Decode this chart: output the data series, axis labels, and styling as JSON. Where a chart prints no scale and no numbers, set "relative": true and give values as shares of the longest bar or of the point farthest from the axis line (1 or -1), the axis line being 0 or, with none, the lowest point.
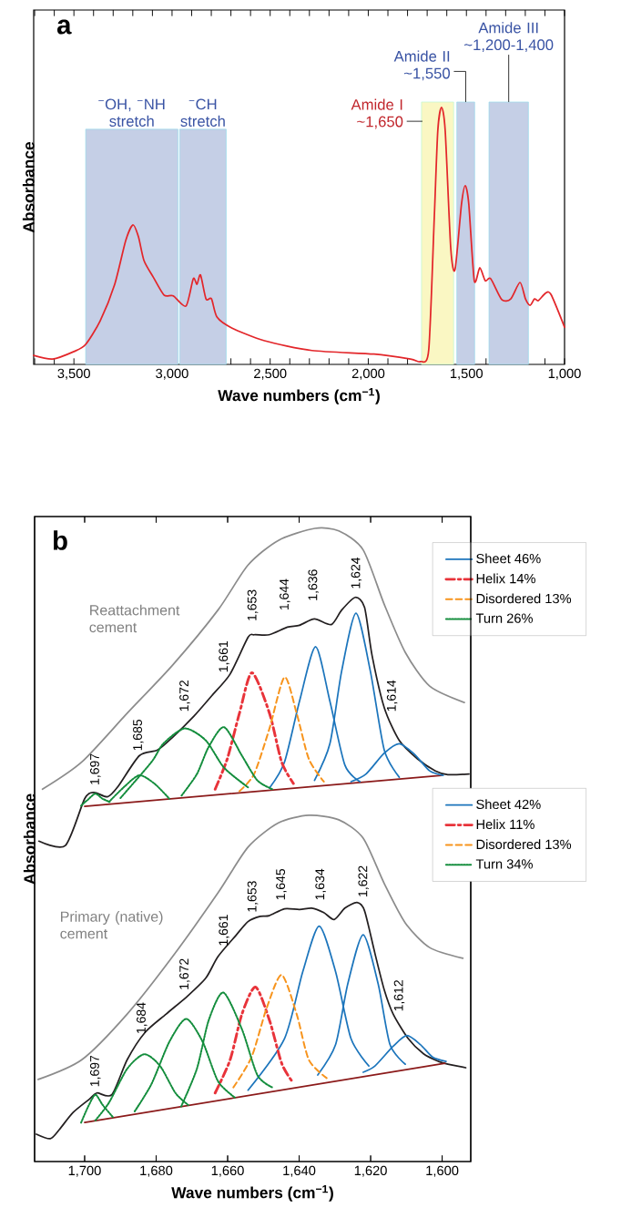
{
  "chart_data": [
    {
      "type": "line",
      "relative": true,
      "xlabel": "Wave numbers (cm$^{−1}$)",
      "ylabel": "Absorbance",
      "color": "#e3262a",
      "xlim": [
        3705,
        1000
      ],
      "xticks": [
        {
          "value": 3700,
          "label": null
        },
        {
          "value": 3600,
          "label": null
        },
        {
          "value": 3500,
          "label": "3,500"
        },
        {
          "value": 3400,
          "label": null
        },
        {
          "value": 3300,
          "label": null
        },
        {
          "value": 3200,
          "label": null
        },
        {
          "value": 3100,
          "label": null
        },
        {
          "value": 3000,
          "label": "3,000"
        },
        {
          "value": 2900,
          "label": null
        },
        {
          "value": 2800,
          "label": null
        },
        {
          "value": 2700,
          "label": null
        },
        {
          "value": 2600,
          "label": null
        },
        {
          "value": 2500,
          "label": "2,500"
        },
        {
          "value": 2400,
          "label": null
        },
        {
          "value": 2300,
          "label": null
        },
        {
          "value": 2200,
          "label": null
        },
        {
          "value": 2100,
          "label": null
        },
        {
          "value": 2000,
          "label": "2,000"
        },
        {
          "value": 1900,
          "label": null
        },
        {
          "value": 1800,
          "label": null
        },
        {
          "value": 1700,
          "label": null
        },
        {
          "value": 1600,
          "label": null
        },
        {
          "value": 1500,
          "label": "1,500"
        },
        {
          "value": 1400,
          "label": null
        },
        {
          "value": 1300,
          "label": null
        },
        {
          "value": 1200,
          "label": null
        },
        {
          "value": 1100,
          "label": null
        },
        {
          "value": 1000,
          "label": "1,000"
        }
      ],
      "x": [
        3705,
        3608,
        3500,
        3440,
        3366,
        3292,
        3236,
        3199,
        3171,
        3143,
        3096,
        3041,
        2994,
        2929,
        2892,
        2873,
        2855,
        2827,
        2799,
        2771,
        2696,
        2529,
        2287,
        1971,
        1785,
        1733,
        1692,
        1664,
        1646,
        1627,
        1608,
        1580,
        1558,
        1525,
        1506,
        1488,
        1460,
        1432,
        1404,
        1376,
        1320,
        1274,
        1227,
        1199,
        1175,
        1153,
        1134,
        1097,
        1069,
        1000
      ],
      "values": [
        0.035,
        0.021,
        0.05,
        0.078,
        0.17,
        0.312,
        0.482,
        0.543,
        0.496,
        0.404,
        0.34,
        0.27,
        0.267,
        0.227,
        0.333,
        0.312,
        0.348,
        0.255,
        0.255,
        0.184,
        0.142,
        0.092,
        0.054,
        0.04,
        0.021,
        0.011,
        0.057,
        0.567,
        0.908,
        1.0,
        0.908,
        0.454,
        0.369,
        0.624,
        0.695,
        0.624,
        0.326,
        0.376,
        0.326,
        0.333,
        0.252,
        0.255,
        0.319,
        0.255,
        0.23,
        0.255,
        0.248,
        0.277,
        0.272,
        0.145
      ],
      "bands": [
        {
          "axis": "x",
          "from": 3440,
          "to": 2970,
          "label": "$^{−}$OH, $^{−}$NH stretch",
          "color": "#c5cfe6"
        },
        {
          "axis": "x",
          "from": 2961,
          "to": 2724,
          "label": "$^{−}$CH stretch",
          "color": "#c5cfe6"
        },
        {
          "axis": "x",
          "from": 1729,
          "to": 1565,
          "label": "Amide I ~1,650",
          "color": "#faf7c3"
        },
        {
          "axis": "x",
          "from": 1549,
          "to": 1458,
          "label": "Amide II ~1,550",
          "color": "#c5cfe6"
        },
        {
          "axis": "x",
          "from": 1385,
          "to": 1184,
          "label": "Amide III ~1,200-1,400",
          "color": "#c5cfe6"
        }
      ],
      "annotations": [
        "a"
      ]
    },
    {
      "type": "line",
      "relative": true,
      "ylabel": "Absorbance",
      "xlim": [
        1714,
        1592
      ],
      "tick_labels": false,
      "legend": "top right",
      "xticks": [
        {
          "value": 1700,
          "label": null
        },
        {
          "value": 1680,
          "label": null
        },
        {
          "value": 1660,
          "label": null
        },
        {
          "value": 1640,
          "label": null
        },
        {
          "value": 1620,
          "label": null
        },
        {
          "value": 1600,
          "label": null
        }
      ],
      "series": [
        {
          "color": "#8c8c8c",
          "line_style": "solid",
          "x": [
            1711.8,
            1700.8,
            1688.1,
            1675.4,
            1662.7,
            1654.3,
            1645.8,
            1635.6,
            1628.9,
            1622.1,
            1616.2,
            1610.3,
            1603.5,
            1593.8
          ],
          "values": [
            0.588,
            0.631,
            0.708,
            0.784,
            0.871,
            0.942,
            0.981,
            1.0,
            0.996,
            0.966,
            0.88,
            0.804,
            0.751,
            0.725
          ]
        },
        {
          "color": "#231f20",
          "line_style": "solid",
          "x": [
            1712.8,
            1705.4,
            1700,
            1697.4,
            1693.6,
            1690.7,
            1684.7,
            1679.6,
            1675.4,
            1669.5,
            1664.4,
            1659.3,
            1654.3,
            1652.6,
            1648.4,
            1643.3,
            1639.9,
            1635.7,
            1631,
            1628.1,
            1624.3,
            1621.7,
            1619.6,
            1616.2,
            1612,
            1606.9,
            1601.9,
            1598.4,
            1592.5
          ],
          "values": [
            0.506,
            0.499,
            0.573,
            0.583,
            0.576,
            0.592,
            0.641,
            0.65,
            0.67,
            0.703,
            0.736,
            0.77,
            0.828,
            0.832,
            0.832,
            0.844,
            0.847,
            0.857,
            0.848,
            0.871,
            0.891,
            0.875,
            0.799,
            0.717,
            0.665,
            0.636,
            0.617,
            0.611,
            0.612
          ]
        },
        {
          "color": "#8b1a1a",
          "line_style": "solid",
          "x": [
            1700,
            1600.1
          ],
          "values": [
            0.561,
            0.61
          ]
        },
        {
          "name": "Sheet 46%",
          "color": "#1c75bc",
          "line_style": "solid",
          "x": [
            1648.3,
            1644.1,
            1639.9,
            1635.4,
            1631.4,
            1627.2,
            1623
          ],
          "values": [
            0.59,
            0.631,
            0.727,
            0.813,
            0.727,
            0.626,
            0.6
          ]
        },
        {
          "color": "#1c75bc",
          "line_style": "solid",
          "x": [
            1635.7,
            1631.4,
            1628.1,
            1624.1,
            1620.1,
            1616.2,
            1612
          ],
          "values": [
            0.602,
            0.66,
            0.775,
            0.866,
            0.775,
            0.65,
            0.607
          ]
        },
        {
          "color": "#1c75bc",
          "line_style": "solid",
          "x": [
            1625.5,
            1621.3,
            1616.2,
            1612,
            1607.7,
            1603.5,
            1599.7
          ],
          "values": [
            0.6,
            0.612,
            0.645,
            0.66,
            0.643,
            0.617,
            0.61
          ]
        },
        {
          "name": "Helix 14%",
          "color": "#e8333a",
          "line_style": "dashdot",
          "x": [
            1663.5,
            1660.1,
            1656.7,
            1653.2,
            1648.3,
            1644.9,
            1641.6
          ],
          "values": [
            0.588,
            0.636,
            0.708,
            0.772,
            0.708,
            0.631,
            0.597
          ]
        },
        {
          "name": "Disordered 13%",
          "color": "#f7941d",
          "line_style": "dashed",
          "x": [
            1656.7,
            1652.6,
            1648.3,
            1644.1,
            1640.7,
            1637.3,
            1633.1
          ],
          "values": [
            0.585,
            0.612,
            0.684,
            0.765,
            0.708,
            0.636,
            0.6
          ]
        },
        {
          "name": "Turn 26%",
          "color": "#138d3c",
          "line_style": "dotted",
          "x": [
            1701,
            1699,
            1697,
            1695,
            1693
          ],
          "values": [
            0.562,
            0.572,
            0.581,
            0.573,
            0.568
          ]
        },
        {
          "color": "#138d3c",
          "line_style": "dotted",
          "x": [
            1693.2,
            1688.9,
            1684.7,
            1680.5,
            1676.3
          ],
          "values": [
            0.568,
            0.592,
            0.61,
            0.597,
            0.573
          ]
        },
        {
          "color": "#138d3c",
          "line_style": "dotted",
          "x": [
            1690,
            1681.3,
            1678,
            1672,
            1666.1,
            1661,
            1654.3
          ],
          "values": [
            0.574,
            0.631,
            0.66,
            0.684,
            0.665,
            0.622,
            0.591
          ]
        },
        {
          "color": "#138d3c",
          "line_style": "dotted",
          "x": [
            1672.9,
            1668.6,
            1665.3,
            1661,
            1656,
            1651.7,
            1647.5
          ],
          "values": [
            0.578,
            0.612,
            0.655,
            0.686,
            0.641,
            0.602,
            0.588
          ]
        }
      ],
      "annotations": [
        "b",
        "Reattachment cement",
        "1,697",
        "1,685",
        "1,672",
        "1,661",
        "1,653",
        "1,644",
        "1,636",
        "1,624",
        "1,614"
      ]
    },
    {
      "type": "line",
      "relative": true,
      "xlabel": "Wave numbers (cm$^{−1}$)",
      "xlim": [
        1714,
        1592
      ],
      "tick_labels": "x",
      "legend": "right",
      "xticks": [
        {
          "value": 1700,
          "label": "1,700"
        },
        {
          "value": 1680,
          "label": "1,680"
        },
        {
          "value": 1660,
          "label": "1,660"
        },
        {
          "value": 1640,
          "label": "1,640"
        },
        {
          "value": 1620,
          "label": "1,620"
        },
        {
          "value": 1600,
          "label": "1,600"
        }
      ],
      "series": [
        {
          "color": "#8c8c8c",
          "line_style": "solid",
          "x": [
            1713,
            1700.8,
            1688.1,
            1675.4,
            1662.7,
            1654.3,
            1645.8,
            1637.3,
            1628.9,
            1622.1,
            1616.2,
            1610.3,
            1603.5,
            1594.2
          ],
          "values": [
            0.237,
            0.294,
            0.426,
            0.592,
            0.776,
            0.908,
            0.978,
            1.0,
            0.987,
            0.934,
            0.803,
            0.689,
            0.618,
            0.587
          ]
        },
        {
          "color": "#231f20",
          "line_style": "solid",
          "x": [
            1713.5,
            1709.6,
            1707.1,
            1703.3,
            1698.7,
            1696.6,
            1692.4,
            1688.1,
            1683.1,
            1677.2,
            1671.2,
            1666.1,
            1662.7,
            1657.7,
            1654.3,
            1650.9,
            1648.4,
            1644.1,
            1639.9,
            1636.5,
            1633.1,
            1630.2,
            1627.2,
            1623.8,
            1621.7,
            1618.8,
            1616.2,
            1613.7,
            1609.5,
            1605.2,
            1601,
            1598.4,
            1593.4
          ],
          "values": [
            0.079,
            0.066,
            0.092,
            0.141,
            0.18,
            0.198,
            0.193,
            0.294,
            0.373,
            0.426,
            0.478,
            0.53,
            0.592,
            0.653,
            0.693,
            0.708,
            0.71,
            0.73,
            0.728,
            0.732,
            0.719,
            0.699,
            0.732,
            0.748,
            0.724,
            0.601,
            0.496,
            0.426,
            0.355,
            0.311,
            0.289,
            0.281,
            0.271
          ]
        },
        {
          "color": "#8b1a1a",
          "line_style": "solid",
          "x": [
            1700,
            1599.2
          ],
          "values": [
            0.113,
            0.284
          ]
        },
        {
          "name": "Sheet 42%",
          "color": "#1c75bc",
          "line_style": "solid",
          "x": [
            1654.3,
            1644.1,
            1639,
            1634.4,
            1629.8,
            1625.5,
            1620.5
          ],
          "values": [
            0.206,
            0.355,
            0.548,
            0.68,
            0.548,
            0.355,
            0.276
          ]
        },
        {
          "color": "#1c75bc",
          "line_style": "solid",
          "x": [
            1634.8,
            1629.8,
            1626.4,
            1622.1,
            1617.9,
            1614.6,
            1610.3
          ],
          "values": [
            0.25,
            0.338,
            0.513,
            0.655,
            0.513,
            0.338,
            0.281
          ]
        },
        {
          "color": "#1c75bc",
          "line_style": "solid",
          "x": [
            1622.1,
            1618.8,
            1613.7,
            1609.9,
            1606.1,
            1602.7,
            1598.9
          ],
          "values": [
            0.258,
            0.276,
            0.333,
            0.364,
            0.338,
            0.302,
            0.289
          ]
        },
        {
          "name": "Helix 11%",
          "color": "#e8333a",
          "line_style": "dashdot",
          "x": [
            1663.5,
            1659.3,
            1656,
            1652.2,
            1648.3,
            1644.9,
            1642
          ],
          "values": [
            0.198,
            0.294,
            0.426,
            0.504,
            0.408,
            0.284,
            0.232
          ]
        },
        {
          "name": "Disordered 13%",
          "color": "#f7941d",
          "line_style": "dashed",
          "x": [
            1658.4,
            1653.3,
            1649.1,
            1644.9,
            1640.7,
            1637.3,
            1632.3
          ],
          "values": [
            0.214,
            0.302,
            0.443,
            0.539,
            0.426,
            0.294,
            0.241
          ]
        },
        {
          "name": "Turn 34%",
          "color": "#138d3c",
          "line_style": "dotted",
          "x": [
            1701,
            1699,
            1697,
            1695,
            1692
          ],
          "values": [
            0.112,
            0.159,
            0.193,
            0.164,
            0.127
          ]
        },
        {
          "color": "#138d3c",
          "line_style": "dotted",
          "x": [
            1697,
            1693.2,
            1688.1,
            1683.3,
            1678.9,
            1674.6,
            1671
          ],
          "values": [
            0.119,
            0.17,
            0.268,
            0.31,
            0.276,
            0.198,
            0.163
          ]
        },
        {
          "color": "#138d3c",
          "line_style": "dotted",
          "x": [
            1686,
            1681.3,
            1676.3,
            1671.6,
            1667,
            1662.7,
            1658
          ],
          "values": [
            0.145,
            0.224,
            0.346,
            0.412,
            0.346,
            0.232,
            0.185
          ]
        },
        {
          "color": "#138d3c",
          "line_style": "dotted",
          "x": [
            1673,
            1668.6,
            1665.3,
            1661.2,
            1656,
            1651.7,
            1647.5
          ],
          "values": [
            0.159,
            0.268,
            0.408,
            0.488,
            0.382,
            0.25,
            0.214
          ]
        }
      ],
      "annotations": [
        "Primary (native) cement",
        "1,697",
        "1,684",
        "1,672",
        "1,661",
        "1,653",
        "1,645",
        "1,634",
        "1,622",
        "1,612"
      ]
    }
  ]
}
